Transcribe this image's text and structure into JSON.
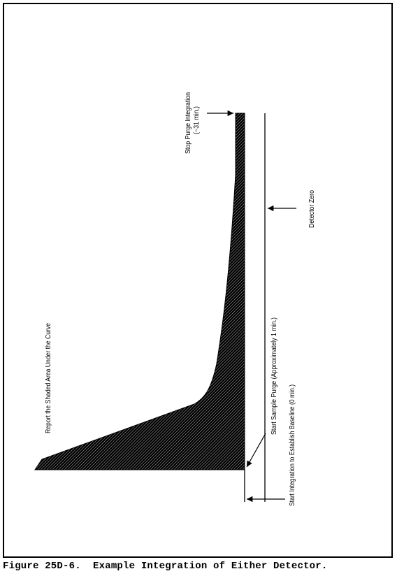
{
  "diagram": {
    "labels": {
      "stop_purge_1": "Stop Purge Integration",
      "stop_purge_2": "(~31 min.)",
      "detector_zero": "Detector Zero",
      "report_area": "Report the Shaded Area Under the Curve",
      "start_sample_purge": "Start Sample Purge (Approximately 1 min.)",
      "start_integration": "Start Integration to Establish Baseline (0 min.)"
    }
  },
  "caption": "Figure 25D-6.  Example Integration of Either Detector."
}
